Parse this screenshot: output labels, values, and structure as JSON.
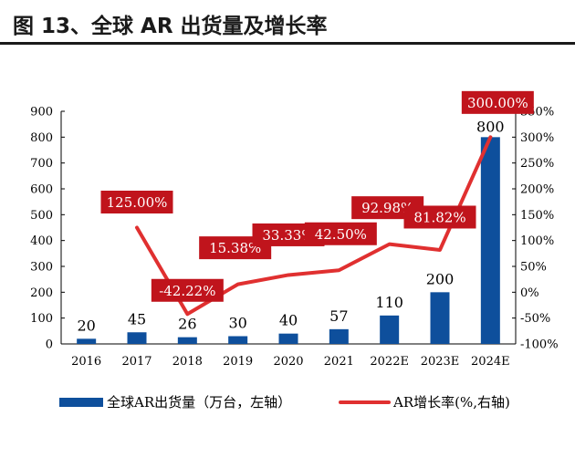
{
  "figure_title": "图 13、全球 AR 出货量及增长率",
  "chart_data": {
    "type": "bar+line",
    "categories": [
      "2016",
      "2017",
      "2018",
      "2019",
      "2020",
      "2021",
      "2022E",
      "2023E",
      "2024E"
    ],
    "series": [
      {
        "name": "全球AR出货量（万台，左轴）",
        "type": "bar",
        "axis": "left",
        "color": "#0e4f9c",
        "values": [
          20,
          45,
          26,
          30,
          40,
          57,
          110,
          200,
          800
        ],
        "labels": [
          "20",
          "45",
          "26",
          "30",
          "40",
          "57",
          "110",
          "200",
          "800"
        ]
      },
      {
        "name": "AR增长率(%,右轴)",
        "type": "line",
        "axis": "right",
        "color": "#e03030",
        "x": [
          "2017",
          "2018",
          "2019",
          "2020",
          "2021",
          "2022E",
          "2023E",
          "2024E"
        ],
        "values": [
          125.0,
          -42.22,
          15.38,
          33.33,
          42.5,
          92.98,
          81.82,
          300.0
        ],
        "labels": [
          "125.00%",
          "-42.22%",
          "15.38%",
          "33.33%",
          "42.50%",
          "92.98%",
          "81.82%",
          "300.00%"
        ]
      }
    ],
    "left_axis": {
      "ylim": [
        0,
        900
      ],
      "ticks": [
        "0",
        "100",
        "200",
        "300",
        "400",
        "500",
        "600",
        "700",
        "800",
        "900"
      ]
    },
    "right_axis": {
      "ylim": [
        -100,
        350
      ],
      "ticks": [
        "-100%",
        "-50%",
        "0%",
        "50%",
        "100%",
        "150%",
        "200%",
        "250%",
        "300%",
        "350%"
      ]
    },
    "label_box_color": "#c0141c",
    "legend": {
      "position": "bottom"
    },
    "grid": false
  }
}
